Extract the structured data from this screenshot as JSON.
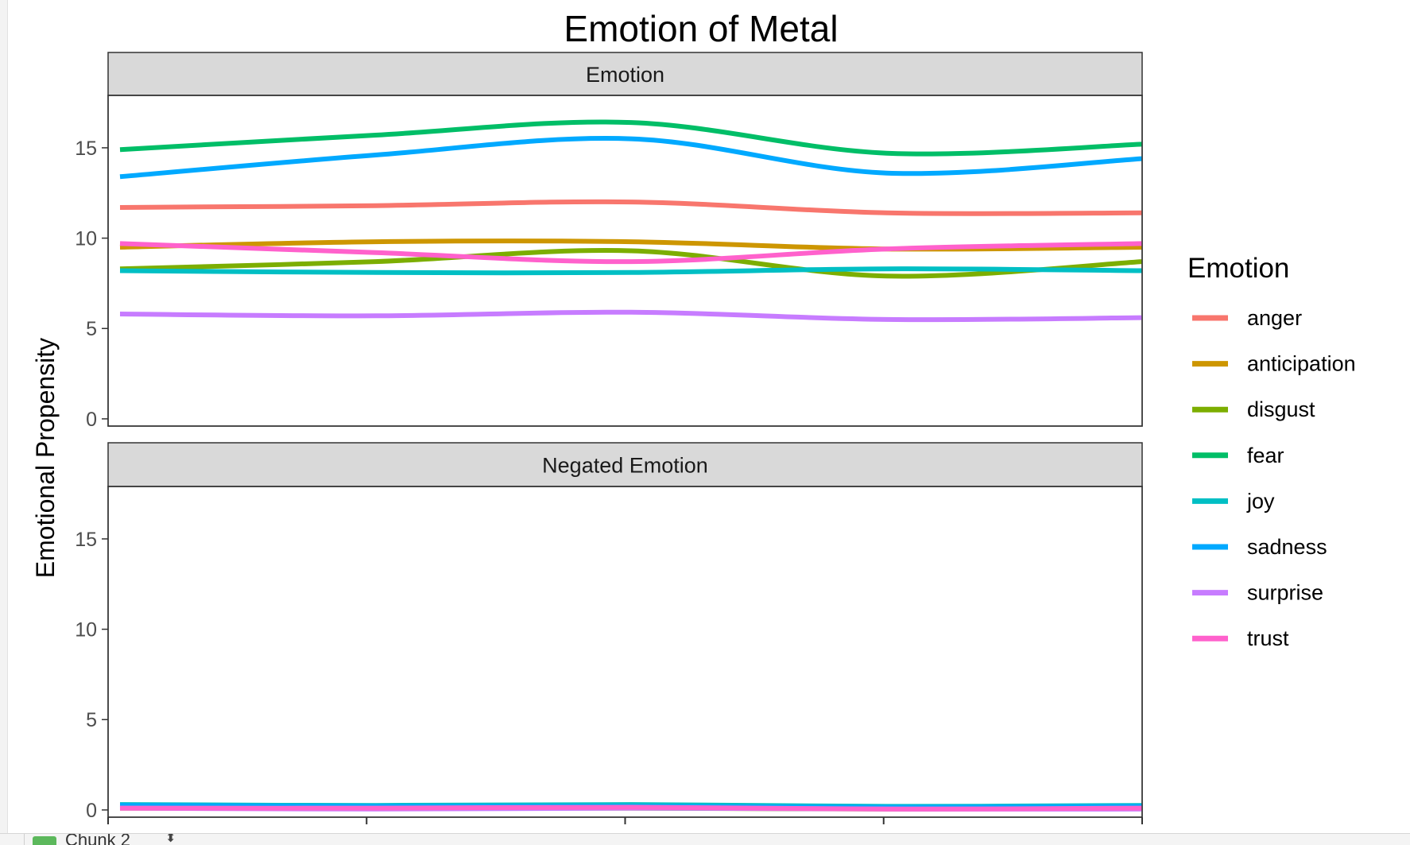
{
  "chart_data": {
    "type": "line",
    "title": "Emotion of Metal",
    "xlabel": "",
    "ylabel": "Emotional Propensity",
    "ylim": [
      -0.4,
      17.9
    ],
    "yticks": [
      0,
      5,
      10,
      15
    ],
    "x": [
      1,
      2,
      3,
      4,
      5
    ],
    "xticks": [
      1,
      2,
      3,
      4,
      5
    ],
    "xtick_labels": [
      "",
      "",
      "",
      "",
      ""
    ],
    "grid": false,
    "legend": {
      "title": "Emotion",
      "position": "right"
    },
    "panels": [
      {
        "name": "Emotion",
        "series": [
          {
            "name": "anger",
            "color": "#F8766D",
            "values": [
              11.7,
              11.8,
              12.0,
              11.4,
              11.4
            ]
          },
          {
            "name": "anticipation",
            "color": "#CD9600",
            "values": [
              9.5,
              9.8,
              9.8,
              9.4,
              9.5
            ]
          },
          {
            "name": "disgust",
            "color": "#7CAE00",
            "values": [
              8.3,
              8.7,
              9.3,
              7.9,
              8.7
            ]
          },
          {
            "name": "fear",
            "color": "#00BE67",
            "values": [
              14.9,
              15.7,
              16.4,
              14.7,
              15.2
            ]
          },
          {
            "name": "joy",
            "color": "#00BFC4",
            "values": [
              8.2,
              8.1,
              8.1,
              8.3,
              8.2
            ]
          },
          {
            "name": "sadness",
            "color": "#00A9FF",
            "values": [
              13.4,
              14.6,
              15.5,
              13.6,
              14.4
            ]
          },
          {
            "name": "surprise",
            "color": "#C77CFF",
            "values": [
              5.8,
              5.7,
              5.9,
              5.5,
              5.6
            ]
          },
          {
            "name": "trust",
            "color": "#FF61CC",
            "values": [
              9.7,
              9.2,
              8.7,
              9.4,
              9.7
            ]
          }
        ]
      },
      {
        "name": "Negated Emotion",
        "series": [
          {
            "name": "anger",
            "color": "#F8766D",
            "values": [
              0.1,
              0.1,
              0.1,
              0.1,
              0.1
            ]
          },
          {
            "name": "anticipation",
            "color": "#CD9600",
            "values": [
              0.15,
              0.1,
              0.15,
              0.1,
              0.1
            ]
          },
          {
            "name": "disgust",
            "color": "#7CAE00",
            "values": [
              0.1,
              0.1,
              0.1,
              0.05,
              0.1
            ]
          },
          {
            "name": "fear",
            "color": "#00BE67",
            "values": [
              0.2,
              0.2,
              0.2,
              0.1,
              0.15
            ]
          },
          {
            "name": "joy",
            "color": "#00BFC4",
            "values": [
              0.3,
              0.25,
              0.3,
              0.2,
              0.25
            ]
          },
          {
            "name": "sadness",
            "color": "#00A9FF",
            "values": [
              0.25,
              0.2,
              0.2,
              0.15,
              0.2
            ]
          },
          {
            "name": "surprise",
            "color": "#C77CFF",
            "values": [
              0.1,
              0.05,
              0.1,
              0.05,
              0.05
            ]
          },
          {
            "name": "trust",
            "color": "#FF61CC",
            "values": [
              0.1,
              0.1,
              0.15,
              0.05,
              0.1
            ]
          }
        ]
      }
    ]
  },
  "footer": {
    "chunk_label": "Chunk 2"
  }
}
